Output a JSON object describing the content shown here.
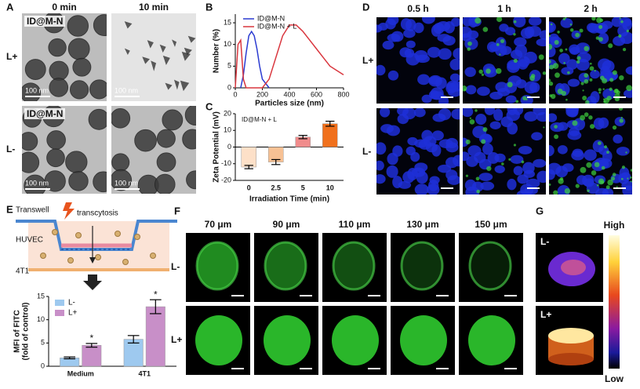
{
  "panels": {
    "A": {
      "label": "A",
      "columns": [
        "0 min",
        "10 min"
      ],
      "rows": [
        "L+",
        "L-"
      ],
      "tags": [
        "ID@M-N",
        "ID@M-N"
      ],
      "scalebars": [
        "100 nm",
        "100 nm",
        "100 nm",
        "100 nm"
      ]
    },
    "D": {
      "label": "D",
      "columns": [
        "0.5 h",
        "1 h",
        "2 h"
      ],
      "rows": [
        "L+",
        "L-"
      ]
    },
    "E": {
      "label": "E",
      "texts": [
        "Transwell",
        "transcytosis",
        "HUVEC",
        "4T1"
      ]
    },
    "F": {
      "label": "F",
      "columns": [
        "70 μm",
        "90 μm",
        "110 μm",
        "130 μm",
        "150 μm"
      ],
      "rows": [
        "L-",
        "L+"
      ]
    },
    "G": {
      "label": "G",
      "images": [
        "L-",
        "L+"
      ],
      "high": "High",
      "low": "Low"
    }
  },
  "chart_data": [
    {
      "type": "line",
      "panel": "B",
      "xlabel": "Particles size (nm)",
      "ylabel": "Number (%)",
      "xlim": [
        0,
        800
      ],
      "xticks": [
        0,
        200,
        400,
        600,
        800
      ],
      "ylim": [
        0,
        17
      ],
      "yticks": [
        0,
        5,
        10,
        15
      ],
      "x": [
        0,
        20,
        40,
        60,
        80,
        100,
        120,
        140,
        160,
        180,
        200,
        250,
        300,
        350,
        400,
        450,
        500,
        550,
        600,
        650,
        700,
        750,
        800
      ],
      "series": [
        {
          "name": "ID@M-N",
          "color": "#2b3bd1",
          "values": [
            null,
            null,
            0,
            3,
            8,
            12,
            13,
            12,
            9,
            5,
            2,
            0,
            null,
            null,
            null,
            null,
            null,
            null,
            null,
            null,
            null,
            null,
            null
          ]
        },
        {
          "name": "ID@M-N + L",
          "color": "#d9363e",
          "values": [
            0,
            10,
            11,
            2,
            0,
            0,
            0,
            0,
            0,
            0,
            0,
            2,
            7,
            12,
            14.5,
            14.5,
            13,
            11,
            9,
            7,
            5,
            4,
            3
          ]
        }
      ]
    },
    {
      "type": "bar",
      "panel": "C",
      "xlabel": "Irradiation Time (min)",
      "ylabel": "Zeta Potential (mV)",
      "annotation": "ID@M-N + L",
      "categories": [
        "0",
        "2.5",
        "5",
        "10"
      ],
      "values": [
        -12,
        -9,
        6,
        14
      ],
      "errors": [
        1,
        1.5,
        1,
        1.5
      ],
      "colors": [
        "#fde0c8",
        "#f7c194",
        "#f08c8c",
        "#f0701c"
      ],
      "ylim": [
        -20,
        20
      ],
      "yticks": [
        -20,
        -10,
        0,
        10,
        20
      ]
    },
    {
      "type": "bar",
      "ylabel": [
        "MFI of FITC",
        "(fold of control)"
      ],
      "categories": [
        "Medium",
        "4T1"
      ],
      "ylim": [
        0,
        15
      ],
      "yticks": [
        0,
        5,
        10,
        15
      ],
      "series": [
        {
          "name": "L-",
          "color": "#9ec9ef",
          "values": [
            1.8,
            5.8
          ],
          "errors": [
            0.2,
            0.8
          ]
        },
        {
          "name": "L+",
          "color": "#c88fc8",
          "values": [
            4.5,
            12.8
          ],
          "errors": [
            0.4,
            1.5
          ],
          "annotations": [
            "*",
            "*"
          ]
        }
      ]
    }
  ]
}
